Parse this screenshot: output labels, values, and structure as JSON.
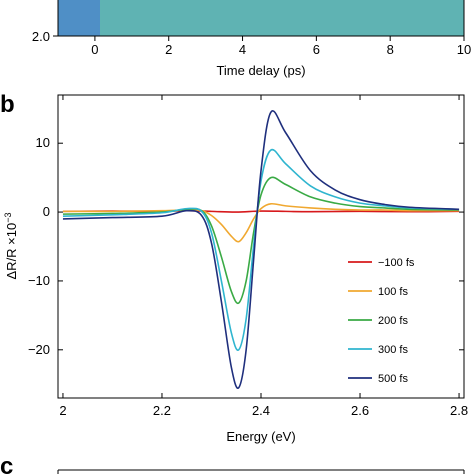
{
  "panels": {
    "b_label": "b",
    "c_label": "c"
  },
  "chart_data": [
    {
      "type": "heatmap",
      "xlabel": "Time delay (ps)",
      "ylabel_tick": "2.0",
      "xlim": [
        -1,
        10
      ],
      "x_ticks": [
        0,
        2,
        4,
        6,
        8,
        10
      ],
      "colors": {
        "pre_zero": "#4f8fc6",
        "post_zero": "#5fb3b3"
      }
    },
    {
      "type": "line",
      "xlabel": "Energy (eV)",
      "ylabel": "ΔR/R ×10",
      "ylabel_exp": "−3",
      "xlim": [
        1.99,
        2.81
      ],
      "ylim": [
        -27,
        17
      ],
      "x_ticks": [
        2.0,
        2.2,
        2.4,
        2.6,
        2.8
      ],
      "x_tick_labels": [
        "2",
        "2.2",
        "2.4",
        "2.6",
        "2.8"
      ],
      "y_ticks": [
        10,
        0,
        -10,
        -20
      ],
      "y_tick_labels": [
        "10",
        "0",
        "−10",
        "−20"
      ],
      "legend_position": "right",
      "series": [
        {
          "name": "−100 fs",
          "color": "#d7191c",
          "x": [
            2.0,
            2.1,
            2.2,
            2.25,
            2.3,
            2.35,
            2.4,
            2.45,
            2.5,
            2.6,
            2.7,
            2.8
          ],
          "y": [
            0.1,
            0.15,
            0.1,
            0.2,
            0.1,
            0.0,
            0.15,
            0.1,
            0.05,
            0.1,
            0.05,
            0.1
          ]
        },
        {
          "name": "100 fs",
          "color": "#f0a830",
          "x": [
            2.0,
            2.1,
            2.2,
            2.25,
            2.28,
            2.3,
            2.32,
            2.34,
            2.355,
            2.37,
            2.385,
            2.4,
            2.42,
            2.45,
            2.5,
            2.55,
            2.6,
            2.65,
            2.7,
            2.8
          ],
          "y": [
            0.1,
            0.1,
            0.2,
            0.3,
            0.2,
            -0.5,
            -1.8,
            -3.5,
            -4.3,
            -3.0,
            -1.0,
            0.5,
            1.2,
            0.9,
            0.6,
            0.4,
            0.3,
            0.3,
            0.2,
            0.2
          ]
        },
        {
          "name": "200 fs",
          "color": "#3aaa45",
          "x": [
            2.0,
            2.1,
            2.2,
            2.25,
            2.28,
            2.3,
            2.32,
            2.34,
            2.355,
            2.37,
            2.385,
            2.4,
            2.42,
            2.45,
            2.5,
            2.55,
            2.6,
            2.65,
            2.7,
            2.8
          ],
          "y": [
            -0.3,
            -0.2,
            0.0,
            0.4,
            0.2,
            -2.0,
            -6.5,
            -11.5,
            -13.2,
            -10.0,
            -3.0,
            2.5,
            5.0,
            4.0,
            2.2,
            1.3,
            0.8,
            0.6,
            0.4,
            0.3
          ]
        },
        {
          "name": "300 fs",
          "color": "#2fb5cf",
          "x": [
            2.0,
            2.1,
            2.2,
            2.25,
            2.28,
            2.3,
            2.32,
            2.34,
            2.355,
            2.37,
            2.385,
            2.4,
            2.42,
            2.45,
            2.5,
            2.55,
            2.6,
            2.65,
            2.7,
            2.8
          ],
          "y": [
            -0.6,
            -0.4,
            -0.1,
            0.5,
            0.1,
            -3.0,
            -10.0,
            -17.5,
            -20.0,
            -15.5,
            -5.0,
            4.5,
            9.0,
            7.0,
            3.8,
            2.2,
            1.3,
            0.9,
            0.6,
            0.4
          ]
        },
        {
          "name": "500 fs",
          "color": "#1f2f7d",
          "x": [
            2.0,
            2.1,
            2.2,
            2.25,
            2.28,
            2.3,
            2.32,
            2.34,
            2.355,
            2.37,
            2.385,
            2.4,
            2.42,
            2.45,
            2.5,
            2.55,
            2.6,
            2.65,
            2.7,
            2.8
          ],
          "y": [
            -1.0,
            -0.8,
            -0.6,
            0.2,
            -0.5,
            -4.5,
            -13.0,
            -22.5,
            -25.5,
            -20.0,
            -7.0,
            6.0,
            14.5,
            11.5,
            6.0,
            3.2,
            1.8,
            1.1,
            0.7,
            0.4
          ]
        }
      ]
    }
  ]
}
